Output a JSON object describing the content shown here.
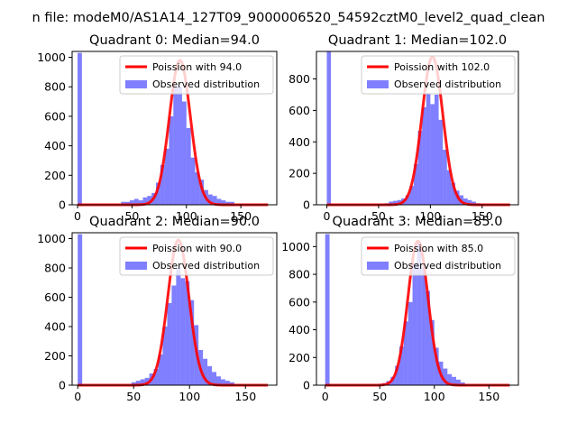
{
  "figure_title": "n file: modeM0/AS1A14_127T09_9000006520_54592cztM0_level2_quad_clean",
  "colors": {
    "poisson": "#ff0000",
    "observed": "#0000ff"
  },
  "chart_data": [
    {
      "type": "bar",
      "title": "Quadrant 0: Median=94.0",
      "xlim": [
        -5,
        183
      ],
      "ylim": [
        0,
        1040
      ],
      "xticks": [
        0,
        50,
        100,
        150
      ],
      "yticks": [
        0,
        200,
        400,
        600,
        800,
        1000
      ],
      "legend": {
        "poisson": "Poission with 94.0",
        "observed": "Observed distribution"
      },
      "median": 94,
      "bin_width": 4,
      "hist": [
        [
          0,
          1030
        ],
        [
          40,
          20
        ],
        [
          44,
          20
        ],
        [
          48,
          30
        ],
        [
          52,
          40
        ],
        [
          56,
          30
        ],
        [
          60,
          50
        ],
        [
          64,
          60
        ],
        [
          68,
          80
        ],
        [
          72,
          150
        ],
        [
          76,
          270
        ],
        [
          80,
          380
        ],
        [
          84,
          600
        ],
        [
          88,
          800
        ],
        [
          92,
          800
        ],
        [
          96,
          700
        ],
        [
          100,
          520
        ],
        [
          104,
          320
        ],
        [
          108,
          220
        ],
        [
          112,
          170
        ],
        [
          116,
          100
        ],
        [
          120,
          70
        ],
        [
          124,
          60
        ],
        [
          128,
          40
        ],
        [
          132,
          30
        ],
        [
          136,
          20
        ],
        [
          140,
          20
        ]
      ],
      "poisson_peak": 980
    },
    {
      "type": "bar",
      "title": "Quadrant 1: Median=102.0",
      "xlim": [
        -10,
        185
      ],
      "ylim": [
        0,
        975
      ],
      "xticks": [
        0,
        50,
        100,
        150
      ],
      "yticks": [
        0,
        200,
        400,
        600,
        800
      ],
      "legend": {
        "poisson": "Poission with 102.0",
        "observed": "Observed distribution"
      },
      "median": 102,
      "bin_width": 4,
      "hist": [
        [
          0,
          975
        ],
        [
          56,
          10
        ],
        [
          60,
          20
        ],
        [
          64,
          25
        ],
        [
          68,
          30
        ],
        [
          72,
          40
        ],
        [
          76,
          60
        ],
        [
          80,
          120
        ],
        [
          84,
          260
        ],
        [
          88,
          470
        ],
        [
          92,
          620
        ],
        [
          96,
          710
        ],
        [
          100,
          640
        ],
        [
          104,
          700
        ],
        [
          108,
          540
        ],
        [
          112,
          350
        ],
        [
          116,
          220
        ],
        [
          120,
          140
        ],
        [
          124,
          90
        ],
        [
          128,
          60
        ],
        [
          132,
          40
        ],
        [
          136,
          30
        ],
        [
          140,
          20
        ],
        [
          144,
          10
        ]
      ],
      "poisson_peak": 940
    },
    {
      "type": "bar",
      "title": "Quadrant 2: Median=90.0",
      "xlim": [
        -5,
        178
      ],
      "ylim": [
        0,
        1040
      ],
      "xticks": [
        0,
        50,
        100,
        150
      ],
      "yticks": [
        0,
        200,
        400,
        600,
        800,
        1000
      ],
      "legend": {
        "poisson": "Poission with 90.0",
        "observed": "Observed distribution"
      },
      "median": 90,
      "bin_width": 4,
      "hist": [
        [
          0,
          1030
        ],
        [
          48,
          20
        ],
        [
          52,
          30
        ],
        [
          56,
          40
        ],
        [
          60,
          50
        ],
        [
          64,
          80
        ],
        [
          68,
          110
        ],
        [
          72,
          210
        ],
        [
          76,
          400
        ],
        [
          80,
          560
        ],
        [
          84,
          680
        ],
        [
          88,
          800
        ],
        [
          92,
          730
        ],
        [
          96,
          710
        ],
        [
          100,
          580
        ],
        [
          104,
          410
        ],
        [
          108,
          240
        ],
        [
          112,
          180
        ],
        [
          116,
          130
        ],
        [
          120,
          90
        ],
        [
          124,
          60
        ],
        [
          128,
          40
        ],
        [
          132,
          30
        ],
        [
          136,
          20
        ]
      ],
      "poisson_peak": 990
    },
    {
      "type": "bar",
      "title": "Quadrant 3: Median=85.0",
      "xlim": [
        -8,
        177
      ],
      "ylim": [
        0,
        1100
      ],
      "xticks": [
        0,
        50,
        100,
        150
      ],
      "yticks": [
        0,
        200,
        400,
        600,
        800,
        1000
      ],
      "legend": {
        "poisson": "Poission with 85.0",
        "observed": "Observed distribution"
      },
      "median": 85,
      "bin_width": 4,
      "hist": [
        [
          0,
          1090
        ],
        [
          52,
          15
        ],
        [
          56,
          30
        ],
        [
          60,
          60
        ],
        [
          64,
          140
        ],
        [
          68,
          280
        ],
        [
          72,
          460
        ],
        [
          76,
          600
        ],
        [
          80,
          880
        ],
        [
          84,
          1030
        ],
        [
          88,
          850
        ],
        [
          92,
          680
        ],
        [
          96,
          470
        ],
        [
          100,
          270
        ],
        [
          104,
          170
        ],
        [
          108,
          120
        ],
        [
          112,
          80
        ],
        [
          116,
          60
        ],
        [
          120,
          40
        ],
        [
          124,
          20
        ]
      ],
      "poisson_peak": 1040
    }
  ]
}
